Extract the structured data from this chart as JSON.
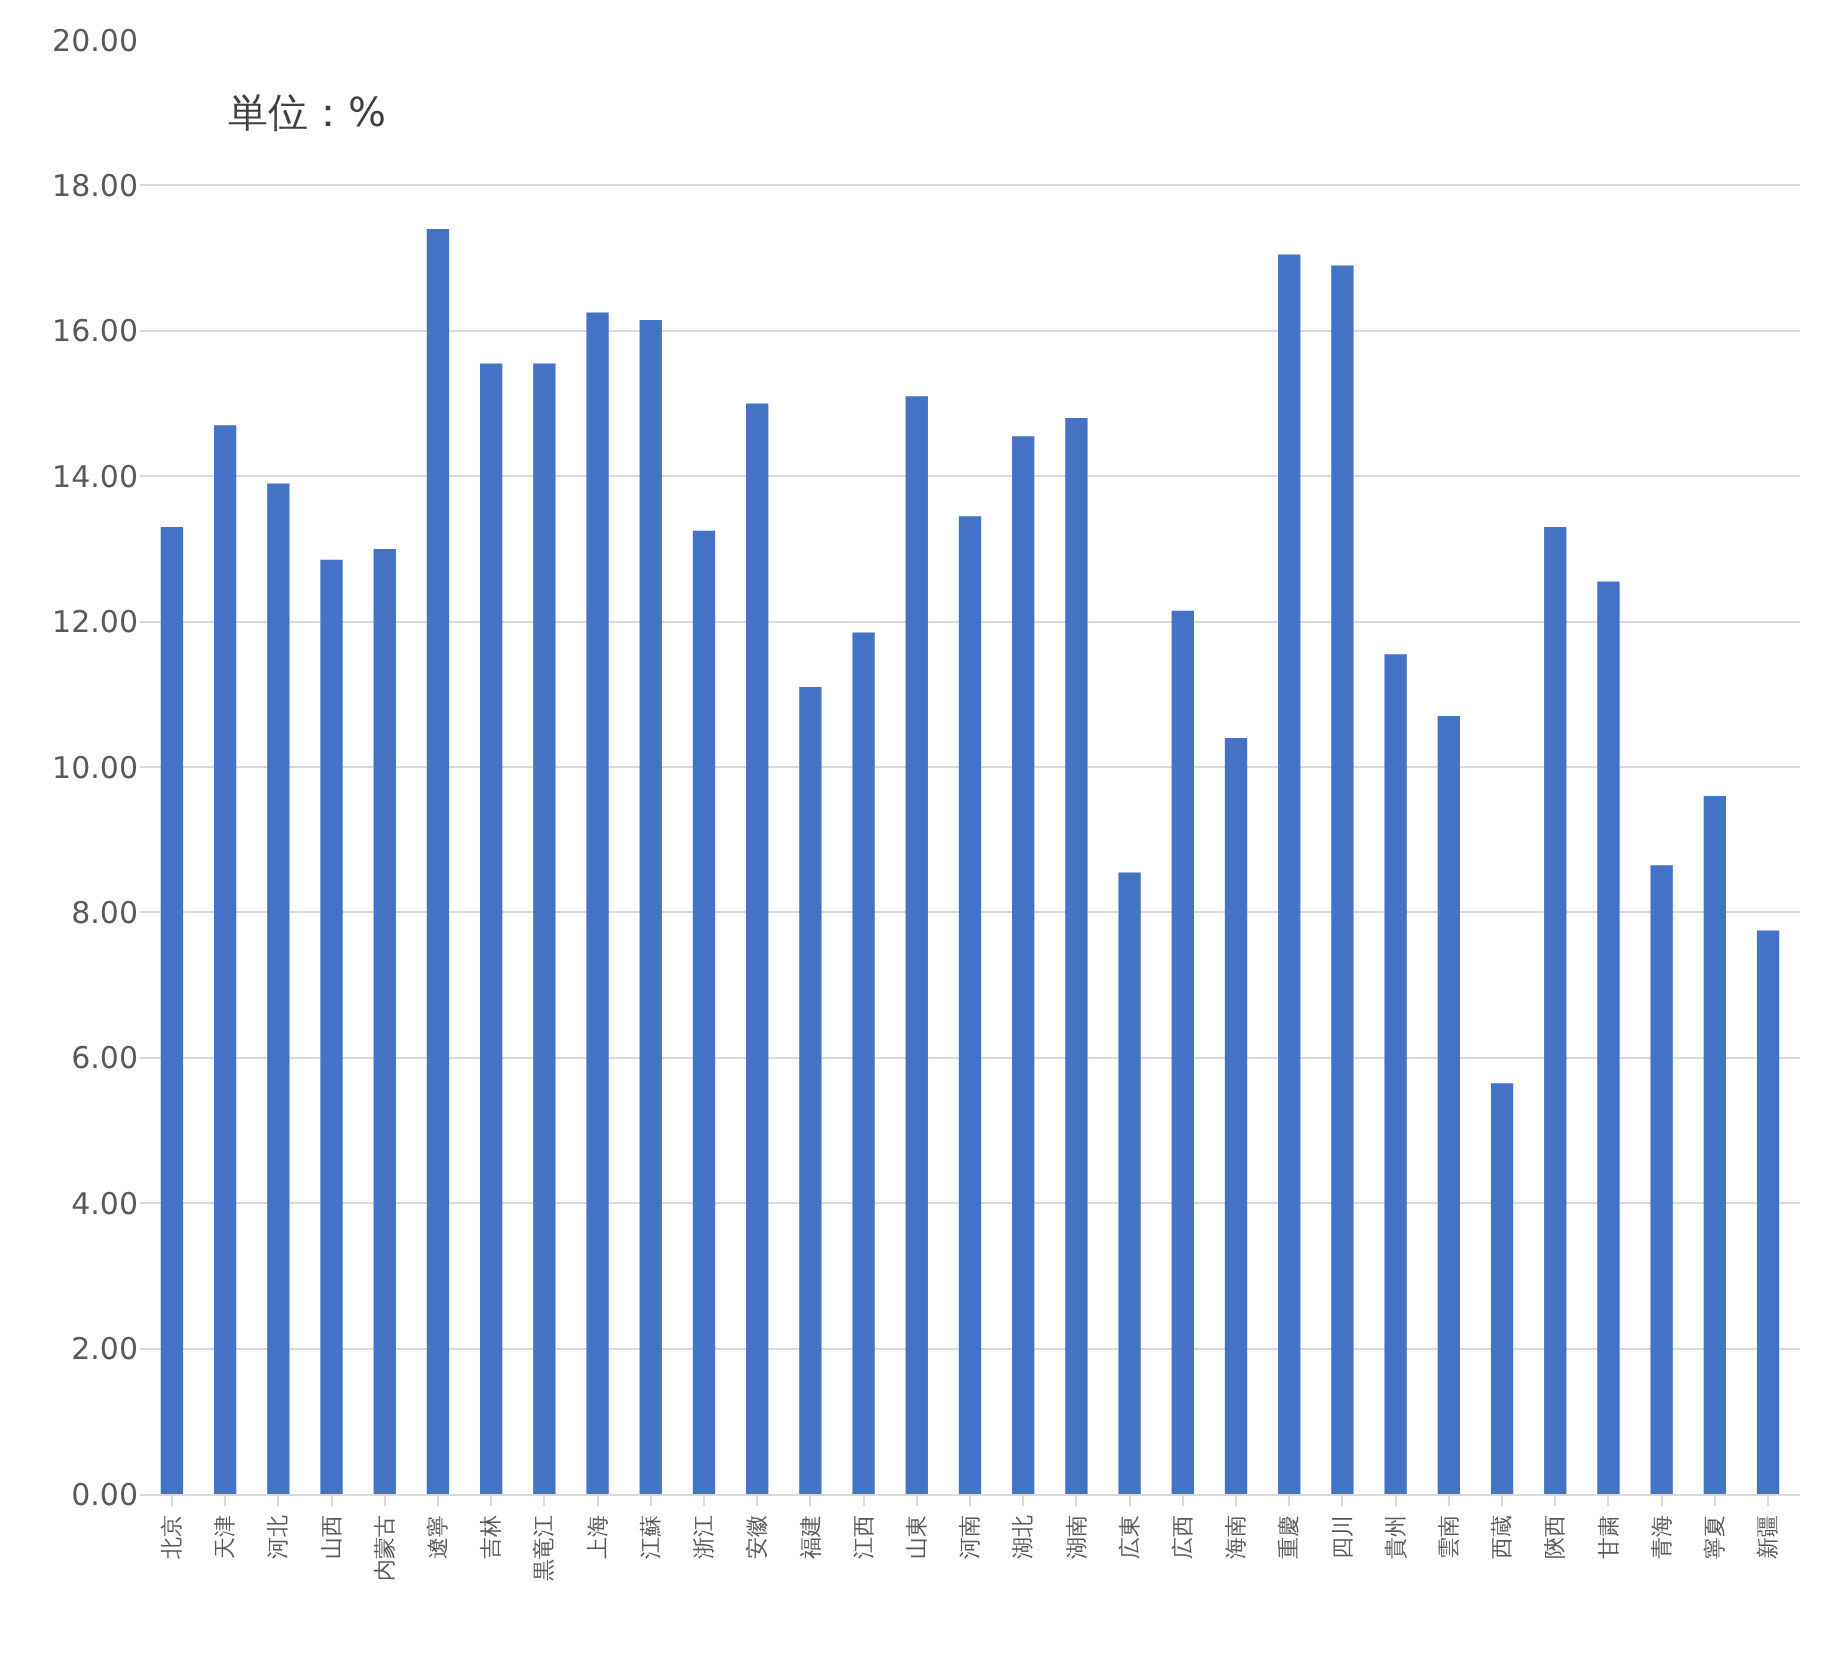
{
  "chart_data": {
    "type": "bar",
    "categories": [
      "北京",
      "天津",
      "河北",
      "山西",
      "内蒙古",
      "遼寧",
      "吉林",
      "黒竜江",
      "上海",
      "江蘇",
      "浙江",
      "安徽",
      "福建",
      "江西",
      "山東",
      "河南",
      "湖北",
      "湖南",
      "広東",
      "広西",
      "海南",
      "重慶",
      "四川",
      "貴州",
      "雲南",
      "西蔵",
      "陝西",
      "甘粛",
      "青海",
      "寧夏",
      "新疆"
    ],
    "values": [
      13.3,
      14.7,
      13.9,
      12.85,
      13.0,
      17.4,
      15.55,
      15.55,
      16.25,
      16.15,
      13.25,
      15.0,
      11.1,
      11.85,
      15.1,
      13.45,
      14.55,
      14.8,
      8.55,
      12.15,
      10.4,
      17.05,
      16.9,
      11.55,
      10.7,
      5.65,
      13.3,
      12.55,
      8.65,
      9.6,
      7.75
    ],
    "color": "#4472c4",
    "ylim": [
      0,
      20
    ],
    "yticks": [
      {
        "value": 0,
        "label": "0.00"
      },
      {
        "value": 2,
        "label": "2.00"
      },
      {
        "value": 4,
        "label": "4.00"
      },
      {
        "value": 6,
        "label": "6.00"
      },
      {
        "value": 8,
        "label": "8.00"
      },
      {
        "value": 10,
        "label": "10.00"
      },
      {
        "value": 12,
        "label": "12.00"
      },
      {
        "value": 14,
        "label": "14.00"
      },
      {
        "value": 16,
        "label": "16.00"
      },
      {
        "value": 18,
        "label": "18.00"
      },
      {
        "value": 20,
        "label": "20.00"
      }
    ],
    "grid": "y",
    "annotations": [
      "単位：%"
    ]
  }
}
